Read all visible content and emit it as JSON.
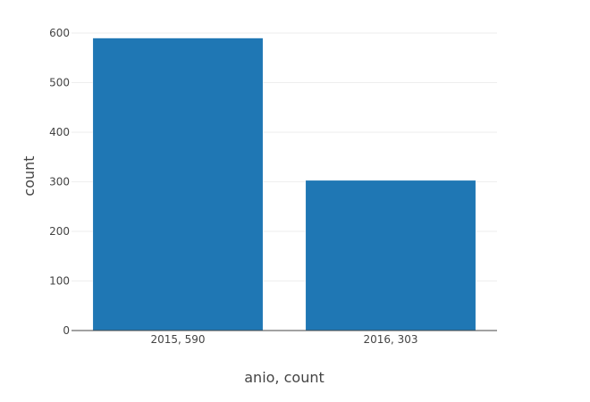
{
  "chart_data": {
    "type": "bar",
    "categories": [
      "2015, 590",
      "2016, 303"
    ],
    "values": [
      590,
      303
    ],
    "xlabel": "anio, count",
    "ylabel": "count",
    "ylim": [
      0,
      600
    ],
    "yticks": [
      0,
      100,
      200,
      300,
      400,
      500,
      600
    ],
    "grid": true,
    "bar_color": "#1f77b4",
    "grid_color": "#eeeeee",
    "axis_color": "#444444"
  }
}
